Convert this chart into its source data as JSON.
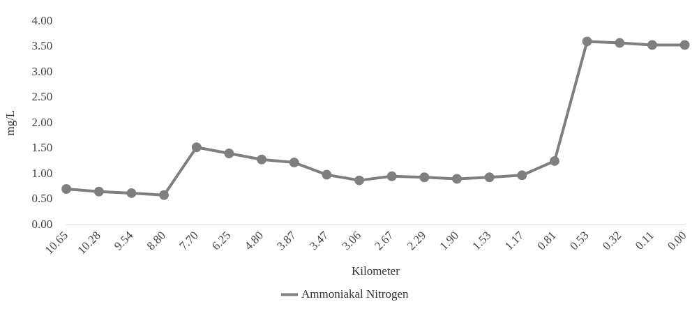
{
  "chart_data": {
    "type": "line",
    "xlabel": "Kilometer",
    "ylabel": "mg/L",
    "categories": [
      "10.65",
      "10.28",
      "9.54",
      "8.80",
      "7.70",
      "6.25",
      "4.80",
      "3.87",
      "3.47",
      "3.06",
      "2.67",
      "2.29",
      "1.90",
      "1.53",
      "1.17",
      "0.81",
      "0.53",
      "0.32",
      "0.11",
      "0.00"
    ],
    "series": [
      {
        "name": "Ammoniakal Nitrogen",
        "color": "#7f7f7f",
        "values": [
          0.7,
          0.65,
          0.62,
          0.58,
          1.52,
          1.4,
          1.28,
          1.22,
          0.98,
          0.87,
          0.95,
          0.93,
          0.9,
          0.93,
          0.97,
          1.25,
          3.6,
          3.57,
          3.53,
          3.53
        ]
      }
    ],
    "ylim": [
      0,
      4
    ],
    "yticks": [
      {
        "value": 0,
        "label": "0.00"
      },
      {
        "value": 0.5,
        "label": "0.50"
      },
      {
        "value": 1,
        "label": "1.00"
      },
      {
        "value": 1.5,
        "label": "1.50"
      },
      {
        "value": 2,
        "label": "2.00"
      },
      {
        "value": 2.5,
        "label": "2.50"
      },
      {
        "value": 3,
        "label": "3.00"
      },
      {
        "value": 3.5,
        "label": "3.50"
      },
      {
        "value": 4,
        "label": "4.00"
      }
    ],
    "grid": false,
    "legend": "bottom",
    "marker": "circle",
    "line_style": "solid"
  }
}
